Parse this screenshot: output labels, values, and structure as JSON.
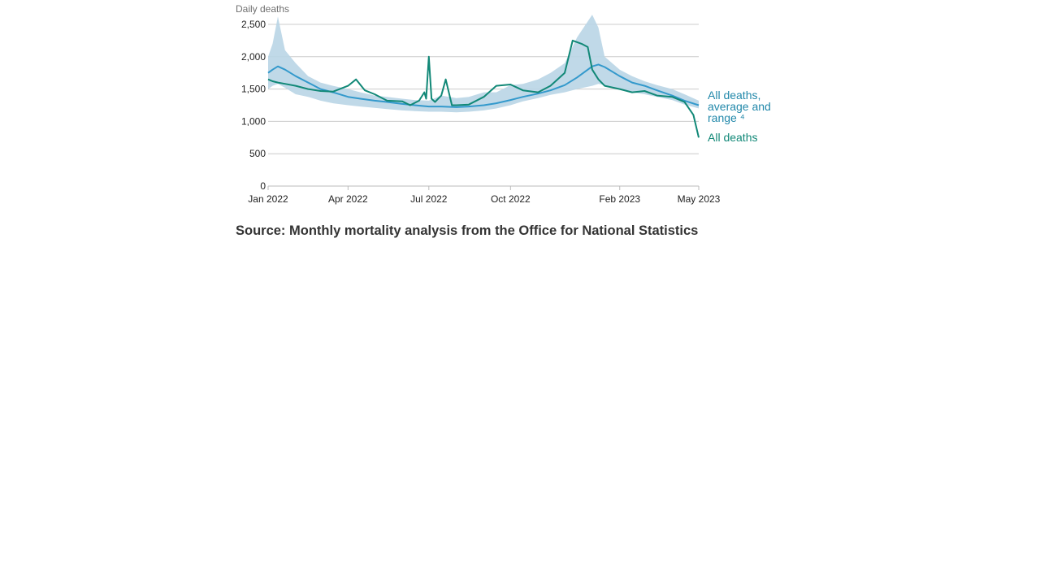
{
  "chart_data": {
    "type": "line",
    "ylabel": "Daily deaths",
    "ylim": [
      0,
      2500
    ],
    "yticks": [
      0,
      500,
      1000,
      1500,
      2000,
      2500
    ],
    "ytick_labels": [
      "0",
      "500",
      "1,000",
      "1,500",
      "2,000",
      "2,500"
    ],
    "xlim": [
      "2022-01-01",
      "2023-05-01"
    ],
    "xticks": [
      {
        "date": "2022-01-01",
        "label": "Jan 2022"
      },
      {
        "date": "2022-04-01",
        "label": "Apr 2022"
      },
      {
        "date": "2022-07-01",
        "label": "Jul 2022"
      },
      {
        "date": "2022-10-01",
        "label": "Oct 2022"
      },
      {
        "date": "2023-02-01",
        "label": "Feb 2023"
      },
      {
        "date": "2023-05-01",
        "label": "May 2023"
      }
    ],
    "grid": true,
    "series": [
      {
        "name": "All deaths, average and range ⁴",
        "kind": "line-with-band",
        "color": "#3399cc",
        "band_color": "#b9d5e5",
        "x": [
          "2022-01-01",
          "2022-01-06",
          "2022-01-12",
          "2022-01-20",
          "2022-02-01",
          "2022-02-15",
          "2022-03-01",
          "2022-03-15",
          "2022-04-01",
          "2022-04-15",
          "2022-05-01",
          "2022-05-15",
          "2022-06-01",
          "2022-06-15",
          "2022-07-01",
          "2022-07-15",
          "2022-08-01",
          "2022-08-15",
          "2022-09-01",
          "2022-09-15",
          "2022-10-01",
          "2022-10-15",
          "2022-11-01",
          "2022-11-15",
          "2022-12-01",
          "2022-12-15",
          "2023-01-01",
          "2023-01-08",
          "2023-01-15",
          "2023-02-01",
          "2023-02-15",
          "2023-03-01",
          "2023-03-15",
          "2023-04-01",
          "2023-04-15",
          "2023-05-01"
        ],
        "y": [
          1750,
          1800,
          1850,
          1800,
          1700,
          1600,
          1500,
          1450,
          1380,
          1350,
          1320,
          1300,
          1270,
          1250,
          1230,
          1230,
          1220,
          1230,
          1250,
          1280,
          1330,
          1380,
          1430,
          1480,
          1560,
          1680,
          1850,
          1880,
          1840,
          1700,
          1600,
          1550,
          1480,
          1400,
          1320,
          1250
        ],
        "y_low": [
          1500,
          1550,
          1580,
          1520,
          1420,
          1380,
          1320,
          1280,
          1250,
          1230,
          1210,
          1190,
          1170,
          1160,
          1150,
          1150,
          1140,
          1150,
          1170,
          1200,
          1250,
          1310,
          1360,
          1410,
          1450,
          1500,
          1550,
          1580,
          1560,
          1500,
          1450,
          1420,
          1380,
          1330,
          1260,
          1200
        ],
        "y_high": [
          2000,
          2200,
          2620,
          2100,
          1900,
          1700,
          1600,
          1550,
          1500,
          1450,
          1400,
          1380,
          1350,
          1330,
          1320,
          1400,
          1360,
          1380,
          1450,
          1450,
          1560,
          1580,
          1650,
          1750,
          1900,
          2300,
          2650,
          2450,
          2000,
          1800,
          1700,
          1620,
          1560,
          1500,
          1420,
          1320
        ]
      },
      {
        "name": "All deaths",
        "color": "#118877",
        "x": [
          "2022-01-01",
          "2022-01-06",
          "2022-01-12",
          "2022-01-20",
          "2022-02-01",
          "2022-02-15",
          "2022-03-01",
          "2022-03-15",
          "2022-04-01",
          "2022-04-10",
          "2022-04-20",
          "2022-05-01",
          "2022-05-15",
          "2022-06-01",
          "2022-06-10",
          "2022-06-20",
          "2022-06-26",
          "2022-06-28",
          "2022-07-01",
          "2022-07-04",
          "2022-07-08",
          "2022-07-15",
          "2022-07-20",
          "2022-07-27",
          "2022-08-01",
          "2022-08-15",
          "2022-09-01",
          "2022-09-15",
          "2022-10-01",
          "2022-10-15",
          "2022-11-01",
          "2022-11-15",
          "2022-12-01",
          "2022-12-10",
          "2022-12-20",
          "2022-12-27",
          "2023-01-01",
          "2023-01-08",
          "2023-01-15",
          "2023-02-01",
          "2023-02-15",
          "2023-03-01",
          "2023-03-15",
          "2023-04-01",
          "2023-04-15",
          "2023-04-25",
          "2023-05-01"
        ],
        "y": [
          1650,
          1620,
          1600,
          1580,
          1550,
          1500,
          1470,
          1460,
          1550,
          1650,
          1480,
          1420,
          1320,
          1310,
          1250,
          1320,
          1450,
          1350,
          2000,
          1350,
          1300,
          1400,
          1650,
          1250,
          1250,
          1260,
          1380,
          1550,
          1570,
          1480,
          1450,
          1550,
          1750,
          2250,
          2200,
          2150,
          1800,
          1650,
          1550,
          1500,
          1450,
          1470,
          1400,
          1380,
          1300,
          1100,
          750
        ]
      }
    ],
    "legend": [
      {
        "lines": [
          "All deaths,",
          "average and",
          "range ⁴"
        ],
        "series": "All deaths, average and range ⁴"
      },
      {
        "lines": [
          "All deaths"
        ],
        "series": "All deaths"
      }
    ],
    "source": "Source: Monthly mortality analysis from the Office for National Statistics"
  }
}
